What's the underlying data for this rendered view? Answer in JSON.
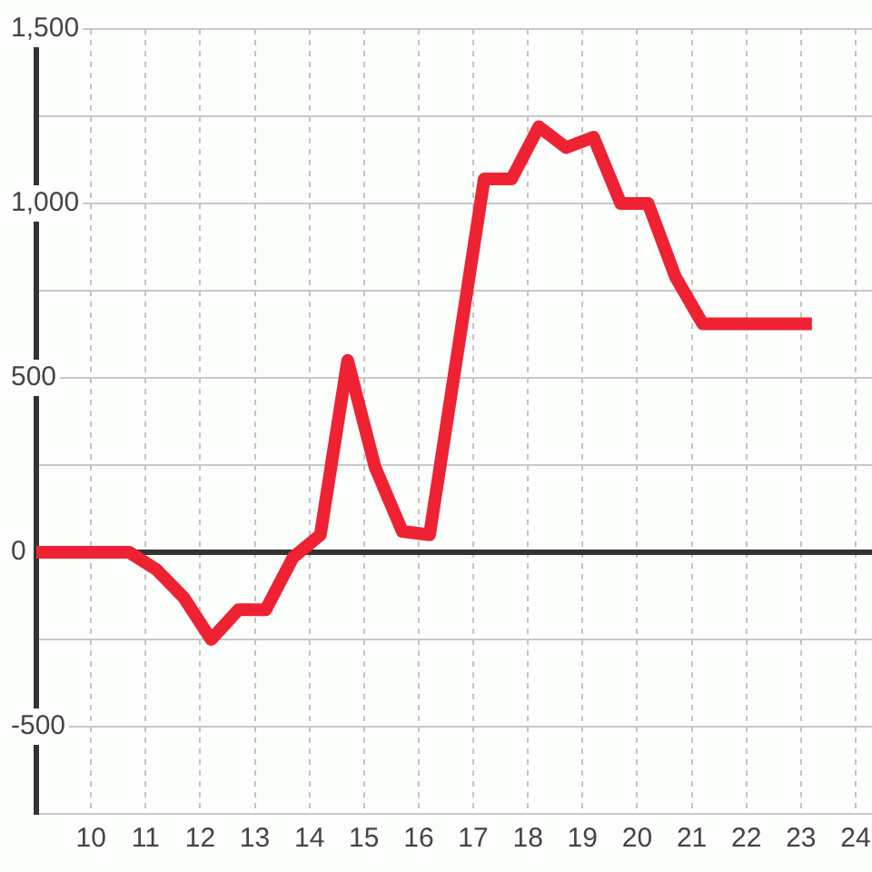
{
  "chart_data": {
    "type": "line",
    "x": [
      9,
      10.7,
      11.2,
      11.7,
      12.2,
      12.7,
      13.2,
      13.7,
      14.2,
      14.7,
      15.2,
      15.7,
      16.2,
      17.2,
      17.7,
      18.2,
      18.7,
      19.2,
      19.7,
      20.2,
      20.7,
      21.2,
      23.2
    ],
    "series": [
      {
        "color": "#ee2233",
        "values": [
          0,
          0,
          -50,
          -130,
          -250,
          -165,
          -165,
          -15,
          50,
          550,
          245,
          60,
          50,
          1070,
          1070,
          1220,
          1160,
          1190,
          1000,
          1000,
          790,
          655,
          655
        ]
      }
    ],
    "xlim": [
      9,
      24.3
    ],
    "xticks": [
      10,
      11,
      12,
      13,
      14,
      15,
      16,
      17,
      18,
      19,
      20,
      21,
      22,
      23,
      24
    ],
    "ylim": [
      -750,
      1500
    ],
    "yticks": [
      {
        "value": -750,
        "label": null
      },
      -500,
      {
        "value": -250,
        "label": null
      },
      0,
      {
        "value": 250,
        "label": null
      },
      500,
      {
        "value": 750,
        "label": null
      },
      {
        "value": 1000,
        "label": "1,000"
      },
      {
        "value": 1250,
        "label": null
      },
      {
        "value": 1500,
        "label": "1,500"
      }
    ],
    "ref_lines": [
      {
        "axis": "y",
        "value": 0,
        "color": "#333333"
      }
    ],
    "grid": true,
    "marker": "none",
    "line_style": "solid"
  }
}
